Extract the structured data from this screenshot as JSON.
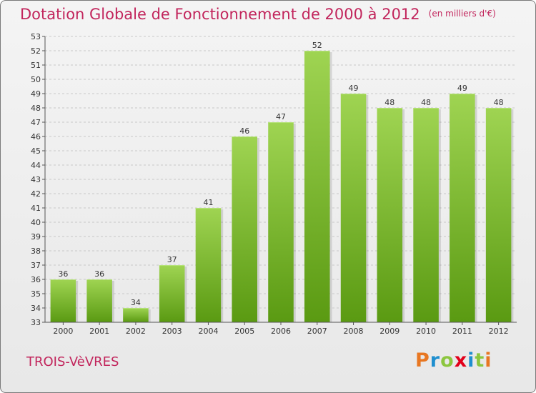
{
  "title": "Dotation Globale de Fonctionnement de 2000 à 2012",
  "unit": "(en milliers d'€)",
  "commune": "TROIS-VèVRES",
  "logo": {
    "text": "Proxiti",
    "colors": [
      "#e87722",
      "#1f8fcf",
      "#8cc63f",
      "#e2001a",
      "#1f8fcf",
      "#8cc63f",
      "#e87722"
    ]
  },
  "colors": {
    "title": "#c2255c",
    "bar_top": "#9fd452",
    "bar_bottom": "#5a9a12",
    "grid": "#c8c8c8",
    "axis_text": "#333333"
  },
  "chart_data": {
    "type": "bar",
    "categories": [
      "2000",
      "2001",
      "2002",
      "2003",
      "2004",
      "2005",
      "2006",
      "2007",
      "2008",
      "2009",
      "2010",
      "2011",
      "2012"
    ],
    "values": [
      36,
      36,
      34,
      37,
      41,
      46,
      47,
      52,
      49,
      48,
      48,
      49,
      48
    ],
    "ylim": [
      33,
      53
    ],
    "yticks": [
      33,
      34,
      35,
      36,
      37,
      38,
      39,
      40,
      41,
      42,
      43,
      44,
      45,
      46,
      47,
      48,
      49,
      50,
      51,
      52,
      53
    ],
    "grid": true,
    "data_labels": true
  }
}
